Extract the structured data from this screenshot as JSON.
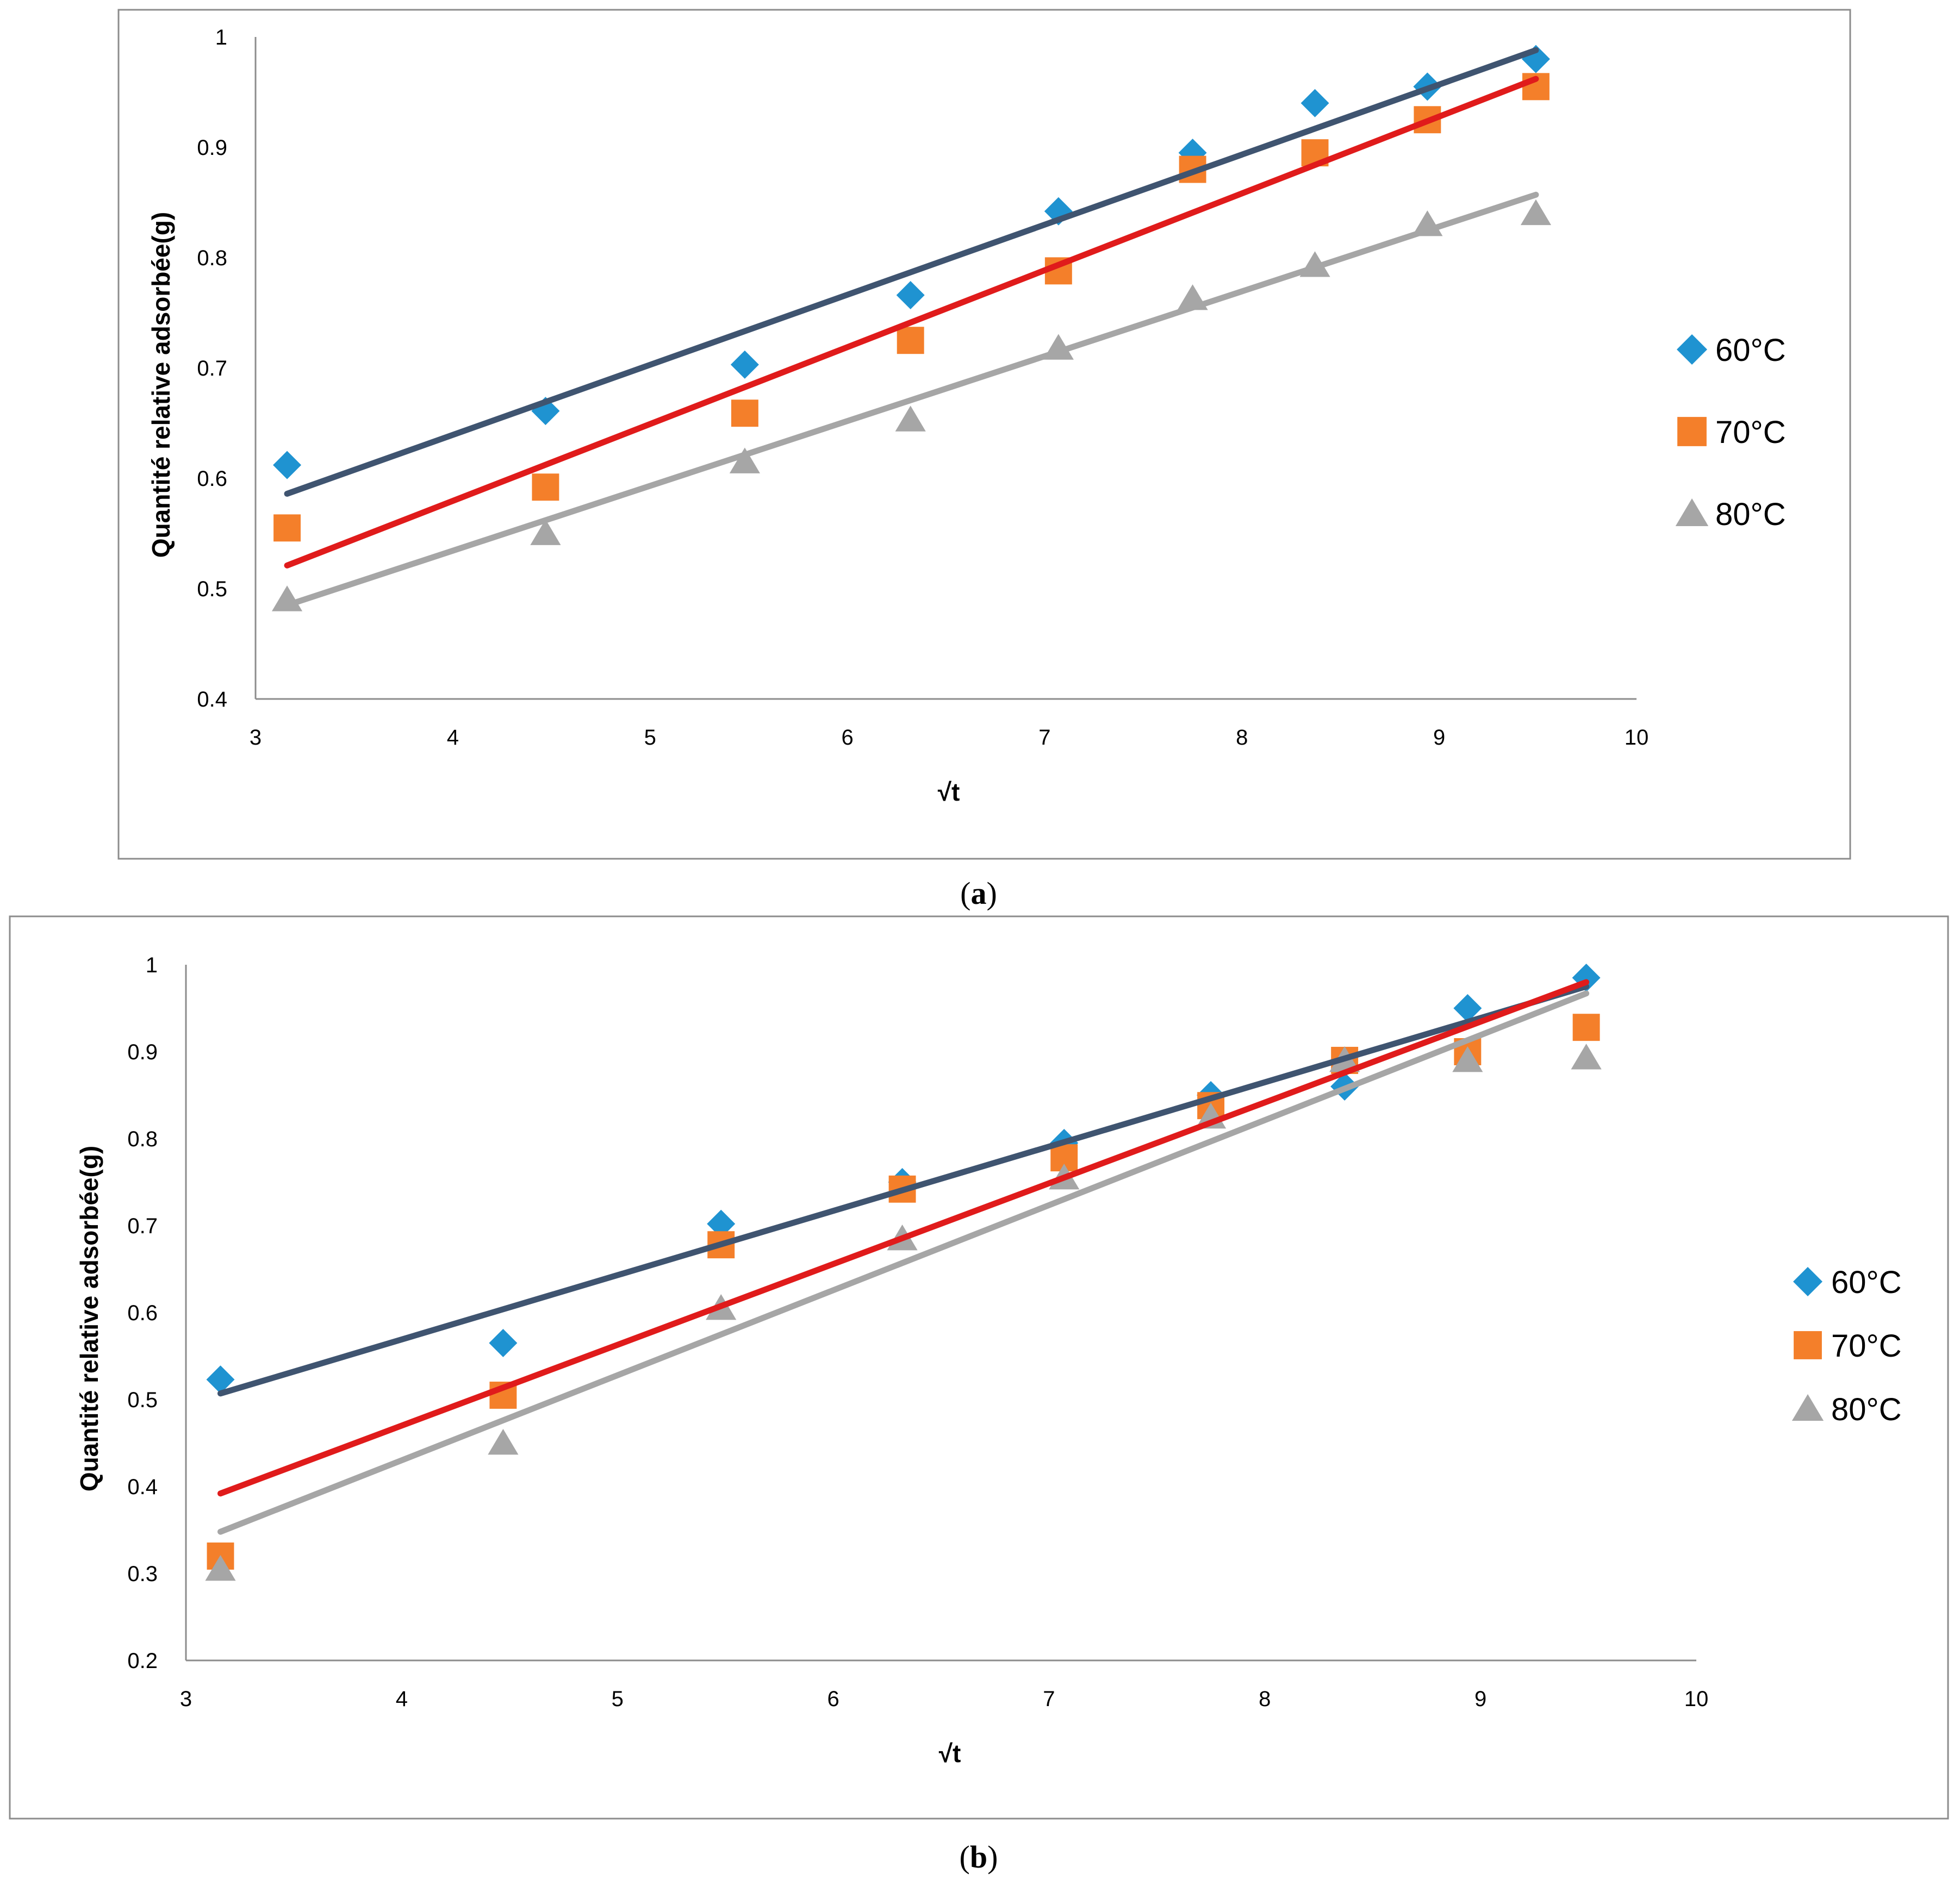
{
  "chart_data": [
    {
      "type": "scatter",
      "panel_label": "a",
      "xlabel": "√t",
      "ylabel": "Quantité relative adsorbée(g)",
      "xlim": [
        3,
        10
      ],
      "ylim": [
        0.4,
        1
      ],
      "xticks": [
        "3",
        "4",
        "5",
        "6",
        "7",
        "8",
        "9",
        "10"
      ],
      "yticks": [
        "0.4",
        "0.5",
        "0.6",
        "0.7",
        "0.8",
        "0.9",
        "1"
      ],
      "legend_position": "right",
      "grid": false,
      "series": [
        {
          "name": "60°C",
          "marker": "diamond",
          "color": "#1f93d1",
          "trend_color": "#3f5470",
          "x": [
            3.16,
            4.47,
            5.48,
            6.32,
            7.07,
            7.75,
            8.37,
            8.94,
            9.49
          ],
          "y": [
            0.612,
            0.661,
            0.703,
            0.766,
            0.842,
            0.895,
            0.94,
            0.955,
            0.98
          ],
          "trend": [
            [
              3.16,
              0.586
            ],
            [
              9.49,
              0.988
            ]
          ]
        },
        {
          "name": "70°C",
          "marker": "square",
          "color": "#f47f2a",
          "trend_color": "#e01b1b",
          "x": [
            3.16,
            4.47,
            5.48,
            6.32,
            7.07,
            7.75,
            8.37,
            8.94,
            9.49
          ],
          "y": [
            0.555,
            0.592,
            0.659,
            0.725,
            0.788,
            0.88,
            0.895,
            0.925,
            0.955
          ],
          "trend": [
            [
              3.16,
              0.521
            ],
            [
              9.49,
              0.962
            ]
          ]
        },
        {
          "name": "80°C",
          "marker": "triangle",
          "color": "#a6a6a6",
          "trend_color": "#a6a6a6",
          "x": [
            3.16,
            4.47,
            5.48,
            6.32,
            7.07,
            7.75,
            8.37,
            8.94,
            9.49
          ],
          "y": [
            0.49,
            0.55,
            0.615,
            0.653,
            0.718,
            0.763,
            0.793,
            0.83,
            0.84
          ],
          "trend": [
            [
              3.16,
              0.485
            ],
            [
              9.49,
              0.857
            ]
          ]
        }
      ]
    },
    {
      "type": "scatter",
      "panel_label": "b",
      "xlabel": "√t",
      "ylabel": "Quantité relative adsorbée(g)",
      "xlim": [
        3,
        10
      ],
      "ylim": [
        0.2,
        1
      ],
      "xticks": [
        "3",
        "4",
        "5",
        "6",
        "7",
        "8",
        "9",
        "10"
      ],
      "yticks": [
        "0.2",
        "0.3",
        "0.4",
        "0.5",
        "0.6",
        "0.7",
        "0.8",
        "0.9",
        "1"
      ],
      "legend_position": "right",
      "grid": false,
      "series": [
        {
          "name": "60°C",
          "marker": "diamond",
          "color": "#1f93d1",
          "trend_color": "#3f5470",
          "x": [
            3.16,
            4.47,
            5.48,
            6.32,
            7.07,
            7.75,
            8.37,
            8.94,
            9.49
          ],
          "y": [
            0.523,
            0.565,
            0.702,
            0.75,
            0.795,
            0.85,
            0.86,
            0.95,
            0.985
          ],
          "trend": [
            [
              3.16,
              0.507
            ],
            [
              9.49,
              0.975
            ]
          ]
        },
        {
          "name": "70°C",
          "marker": "square",
          "color": "#f47f2a",
          "trend_color": "#e01b1b",
          "x": [
            3.16,
            4.47,
            5.48,
            6.32,
            7.07,
            7.75,
            8.37,
            8.94,
            9.49
          ],
          "y": [
            0.32,
            0.505,
            0.678,
            0.742,
            0.778,
            0.838,
            0.89,
            0.9,
            0.928
          ],
          "trend": [
            [
              3.16,
              0.392
            ],
            [
              9.49,
              0.98
            ]
          ]
        },
        {
          "name": "80°C",
          "marker": "triangle",
          "color": "#a6a6a6",
          "trend_color": "#a6a6a6",
          "x": [
            3.16,
            4.47,
            5.48,
            6.32,
            7.07,
            7.75,
            8.37,
            8.94,
            9.49
          ],
          "y": [
            0.305,
            0.45,
            0.605,
            0.685,
            0.755,
            0.825,
            0.89,
            0.89,
            0.893
          ],
          "trend": [
            [
              3.16,
              0.348
            ],
            [
              9.49,
              0.967
            ]
          ]
        }
      ]
    }
  ],
  "captions": {
    "a": {
      "open": "(",
      "letter": "a",
      "close": ")"
    },
    "b": {
      "open": "(",
      "letter": "b",
      "close": ")"
    }
  }
}
